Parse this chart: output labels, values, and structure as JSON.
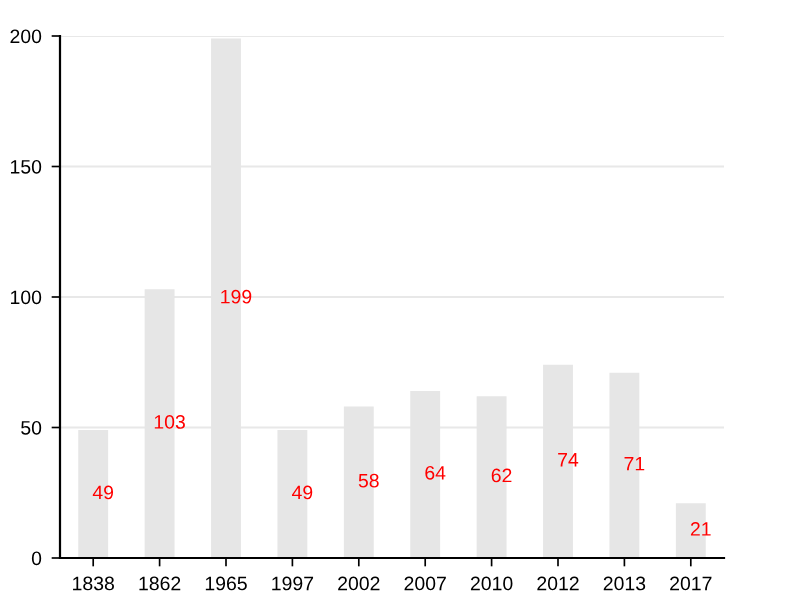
{
  "chart_data": {
    "type": "bar",
    "categories": [
      "1838",
      "1862",
      "1965",
      "1997",
      "2002",
      "2007",
      "2010",
      "2012",
      "2013",
      "2017"
    ],
    "values": [
      49,
      103,
      199,
      49,
      58,
      64,
      62,
      74,
      71,
      21
    ],
    "color": "#e6e6e6",
    "ylim": [
      0,
      200
    ],
    "yticks": [
      0,
      50,
      100,
      150,
      200
    ],
    "grid": "y",
    "data_labels": true
  }
}
